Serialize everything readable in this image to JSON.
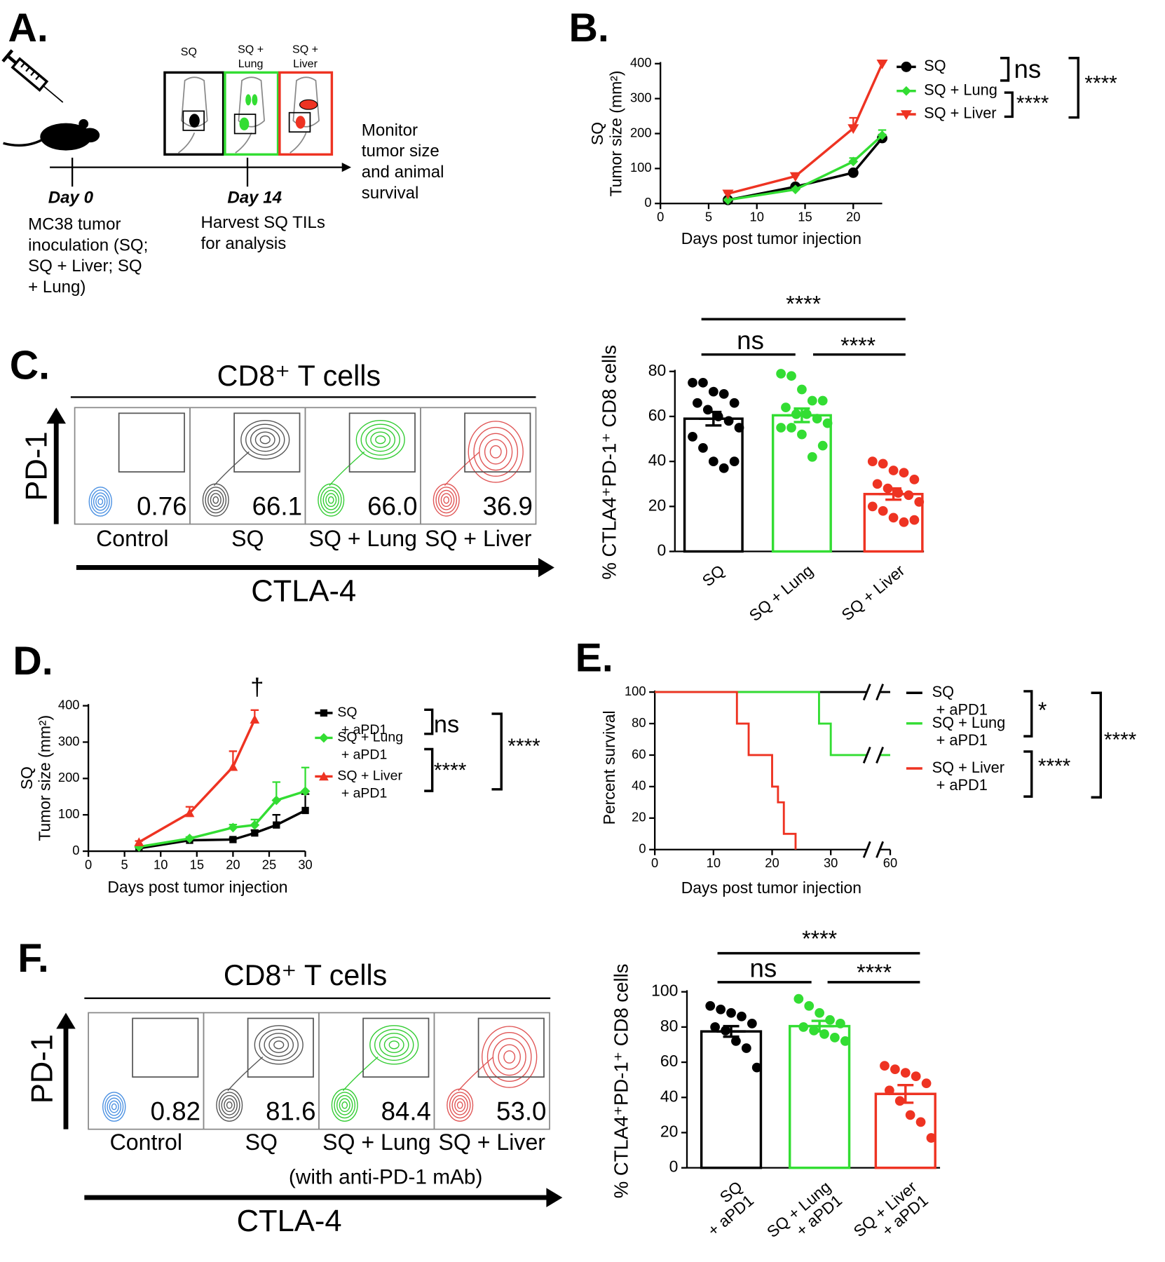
{
  "panel_labels": [
    "A.",
    "B.",
    "C.",
    "D.",
    "E.",
    "F."
  ],
  "schematic": {
    "groups": [
      [
        "SQ"
      ],
      [
        "SQ +",
        "Lung"
      ],
      [
        "SQ +",
        "Liver"
      ]
    ],
    "monitor": [
      "Monitor",
      "tumor size",
      "and animal",
      "survival"
    ],
    "day0": "Day 0",
    "day14": "Day 14",
    "day0_text": [
      "MC38 tumor",
      "inoculation (SQ;",
      "SQ + Liver; SQ",
      "+ Lung)"
    ],
    "day14_text": [
      "Harvest SQ TILs",
      "for analysis"
    ]
  },
  "flow": [
    {
      "title": "CD8⁺ T cells",
      "y_label": "PD-1",
      "x_label": "CTLA-4",
      "samples": [
        "Control",
        "SQ",
        "SQ + Lung",
        "SQ + Liver"
      ],
      "gates": [
        "0.76",
        "66.1",
        "66.0",
        "36.9"
      ],
      "colors": [
        "#4a90e2",
        "#555555",
        "#33cc33",
        "#e05555"
      ]
    },
    {
      "title": "CD8⁺ T cells",
      "y_label": "PD-1",
      "x_label": "CTLA-4",
      "note": "(with anti-PD-1 mAb)",
      "samples": [
        "Control",
        "SQ",
        "SQ + Lung",
        "SQ + Liver"
      ],
      "gates": [
        "0.82",
        "81.6",
        "84.4",
        "53.0"
      ],
      "colors": [
        "#4a90e2",
        "#555555",
        "#33cc33",
        "#e05555"
      ]
    }
  ],
  "chart_data": [
    {
      "type": "line",
      "ylabel": [
        "SQ",
        "Tumor size (mm²)"
      ],
      "xlabel": "Days post tumor injection",
      "x": [
        7,
        14,
        20,
        23
      ],
      "series": [
        {
          "name": "SQ",
          "color": "#000000",
          "marker": "circle",
          "values": [
            10,
            48,
            88,
            187
          ],
          "errors": [
            2,
            3,
            5,
            10
          ]
        },
        {
          "name": "SQ + Lung",
          "color": "#33dd33",
          "marker": "diamond",
          "values": [
            10,
            40,
            120,
            195
          ],
          "errors": [
            2,
            3,
            10,
            15
          ]
        },
        {
          "name": "SQ + Liver",
          "color": "#ee3322",
          "marker": "triangle-down",
          "values": [
            28,
            78,
            215,
            400
          ],
          "errors": [
            3,
            4,
            30,
            5
          ]
        }
      ],
      "xlim": [
        0,
        23
      ],
      "xticks": [
        0,
        5,
        10,
        15,
        20
      ],
      "ylim": [
        0,
        400
      ],
      "yticks": [
        0,
        100,
        200,
        300,
        400
      ],
      "annotations": [
        "ns",
        "****",
        "****"
      ]
    },
    {
      "type": "bar",
      "ylabel": "% CTLA4⁺PD-1⁺ CD8 cells",
      "categories": [
        "SQ",
        "SQ + Lung",
        "SQ + Liver"
      ],
      "colors": [
        "#000000",
        "#33dd33",
        "#ee3322"
      ],
      "values": [
        59,
        60.5,
        25.5
      ],
      "errors": [
        3,
        3,
        2.5
      ],
      "points": [
        [
          75,
          75,
          71,
          70,
          66,
          66,
          63,
          60,
          58,
          55,
          51,
          46,
          40,
          37,
          40
        ],
        [
          79,
          78,
          72,
          67,
          67,
          64,
          61,
          61,
          59,
          57,
          55,
          55,
          52,
          42,
          47
        ],
        [
          40,
          39,
          36,
          35,
          32,
          30,
          28,
          26,
          25,
          22,
          20,
          18,
          15,
          13,
          14
        ]
      ],
      "ylim": [
        0,
        80
      ],
      "yticks": [
        0,
        20,
        40,
        60,
        80
      ],
      "annotations": [
        "****",
        "ns",
        "****"
      ]
    },
    {
      "type": "line",
      "ylabel": [
        "SQ",
        "Tumor size (mm²)"
      ],
      "xlabel": "Days post tumor injection",
      "x": [
        7,
        14,
        20,
        23,
        26,
        30
      ],
      "series": [
        {
          "name": "SQ + aPD1",
          "color": "#000000",
          "marker": "square",
          "values": [
            8,
            30,
            32,
            50,
            72,
            112
          ],
          "errors": [
            2,
            4,
            4,
            8,
            28,
            45
          ]
        },
        {
          "name": "SQ + Lung + aPD1",
          "color": "#33dd33",
          "marker": "diamond",
          "values": [
            12,
            35,
            65,
            72,
            140,
            165
          ],
          "errors": [
            2,
            4,
            8,
            15,
            50,
            65
          ]
        },
        {
          "name": "SQ + Liver + aPD1",
          "color": "#ee3322",
          "marker": "triangle-up",
          "values": [
            25,
            105,
            232,
            362,
            null,
            null
          ],
          "errors": [
            3,
            17,
            43,
            26,
            null,
            null
          ]
        }
      ],
      "xlim": [
        0,
        30
      ],
      "xticks": [
        0,
        5,
        10,
        15,
        20,
        25,
        30
      ],
      "ylim": [
        0,
        400
      ],
      "yticks": [
        0,
        100,
        200,
        300,
        400
      ],
      "annotations": [
        "†",
        "ns",
        "****",
        "****"
      ]
    },
    {
      "type": "step",
      "ylabel": "Percent survival",
      "xlabel": "Days post tumor injection",
      "series": [
        {
          "name": "SQ + aPD1",
          "color": "#000000",
          "x": [
            0,
            60
          ],
          "values": [
            100,
            100
          ]
        },
        {
          "name": "SQ + Lung + aPD1",
          "color": "#33dd33",
          "x": [
            0,
            28,
            30,
            60
          ],
          "values": [
            100,
            80,
            60,
            60
          ]
        },
        {
          "name": "SQ + Liver + aPD1",
          "color": "#ee3322",
          "x": [
            0,
            14,
            16,
            20,
            21,
            22,
            24
          ],
          "values": [
            100,
            80,
            60,
            40,
            30,
            10,
            0
          ]
        }
      ],
      "xlim": [
        0,
        60
      ],
      "xticks": [
        0,
        10,
        20,
        30,
        60
      ],
      "ylim": [
        0,
        100
      ],
      "yticks": [
        0,
        20,
        40,
        60,
        80,
        100
      ],
      "annotations": [
        "*",
        "****",
        "****"
      ]
    },
    {
      "type": "bar",
      "ylabel": "% CTLA4⁺PD-1⁺ CD8 cells",
      "categories": [
        "SQ + aPD1",
        "SQ + Lung + aPD1",
        "SQ + Liver + aPD1"
      ],
      "colors": [
        "#000000",
        "#33dd33",
        "#ee3322"
      ],
      "values": [
        77.5,
        80.5,
        42
      ],
      "errors": [
        3,
        3,
        5
      ],
      "points": [
        [
          92,
          90,
          88,
          86,
          82,
          80,
          78,
          72,
          68,
          57
        ],
        [
          96,
          92,
          88,
          84,
          82,
          80,
          78,
          76,
          74,
          72
        ],
        [
          58,
          56,
          54,
          52,
          48,
          44,
          38,
          30,
          26,
          17
        ]
      ],
      "ylim": [
        0,
        100
      ],
      "yticks": [
        0,
        20,
        40,
        60,
        80,
        100
      ],
      "annotations": [
        "****",
        "ns",
        "****"
      ]
    }
  ]
}
